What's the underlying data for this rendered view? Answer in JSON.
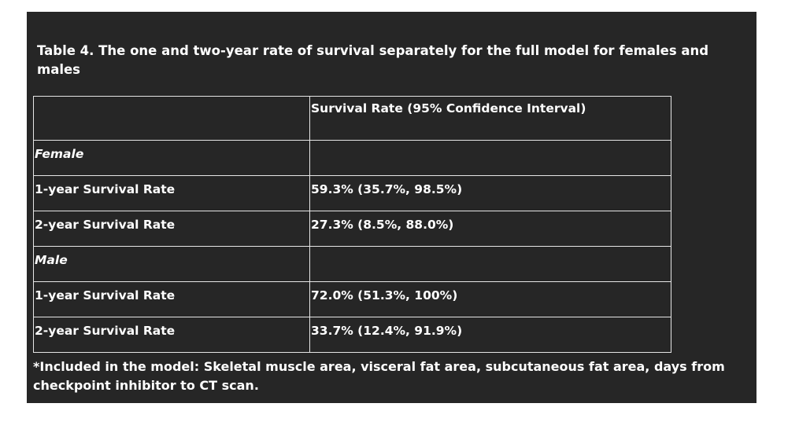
{
  "document": {
    "title": "Table 4. The one and two-year rate of survival separately for the full model for females and males",
    "table": {
      "header": [
        "",
        "Survival Rate (95% Confidence Interval)"
      ],
      "groups": [
        {
          "label": "Female",
          "rows": [
            {
              "label": "1-year Survival Rate",
              "value": "59.3% (35.7%, 98.5%)"
            },
            {
              "label": "2-year Survival Rate",
              "value": "27.3% (8.5%, 88.0%)"
            }
          ]
        },
        {
          "label": "Male",
          "rows": [
            {
              "label": "1-year Survival Rate",
              "value": "72.0% (51.3%, 100%)"
            },
            {
              "label": "2-year Survival Rate",
              "value": "33.7% (12.4%, 91.9%)"
            }
          ]
        }
      ]
    },
    "footnote": "*Included in the model: Skeletal muscle area, visceral fat area, subcutaneous fat area, days from checkpoint inhibitor to CT scan."
  }
}
